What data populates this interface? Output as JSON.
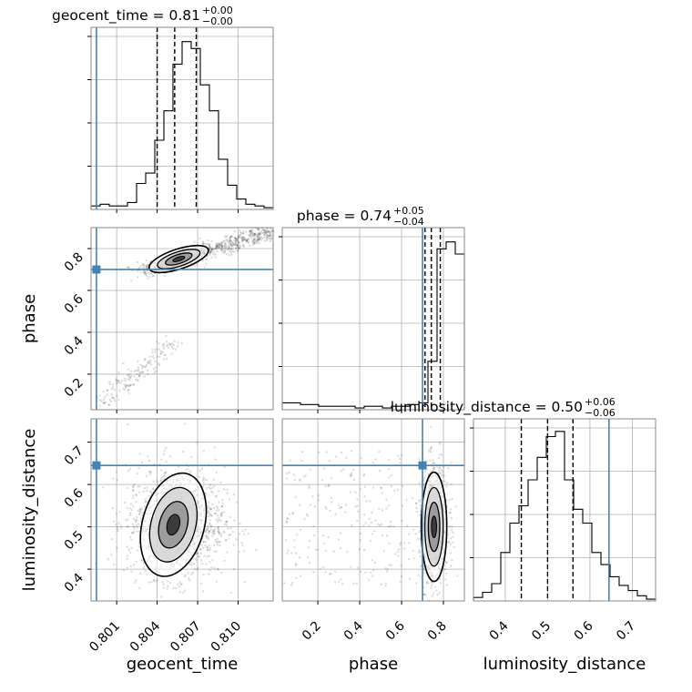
{
  "chart_data": {
    "type": "corner",
    "parameters": [
      "geocent_time",
      "phase",
      "luminosity_distance"
    ],
    "injected": {
      "geocent_time": 0.7995,
      "phase": 0.7,
      "luminosity_distance": 0.645
    },
    "titles": [
      {
        "base": "geocent_time = 0.81",
        "sup": "+0.00",
        "sub": "−0.00"
      },
      {
        "base": "phase = 0.74",
        "sup": "+0.05",
        "sub": "−0.04"
      },
      {
        "base": "luminosity_distance = 0.50",
        "sup": "+0.06",
        "sub": "−0.06"
      }
    ],
    "axis_labels": {
      "x": [
        "geocent_time",
        "phase",
        "luminosity_distance"
      ],
      "y": [
        "phase",
        "luminosity_distance"
      ]
    },
    "ticks": {
      "geocent_time": [
        "0.801",
        "0.804",
        "0.807",
        "0.810"
      ],
      "phase": [
        "0.2",
        "0.4",
        "0.6",
        "0.8"
      ],
      "luminosity_distance": [
        "0.4",
        "0.5",
        "0.6",
        "0.7"
      ]
    },
    "ranges": {
      "geocent_time": [
        0.7991,
        0.8126
      ],
      "phase": [
        0.03,
        0.9
      ],
      "luminosity_distance": [
        0.325,
        0.755
      ]
    },
    "quantiles": {
      "geocent_time": [
        0.804,
        0.8053,
        0.8069
      ],
      "phase": [
        0.712,
        0.742,
        0.785
      ],
      "luminosity_distance": [
        0.438,
        0.5,
        0.56
      ]
    },
    "histograms": {
      "geocent_time": [
        0.02,
        0.03,
        0.02,
        0.02,
        0.04,
        0.15,
        0.21,
        0.4,
        0.57,
        0.84,
        0.97,
        0.93,
        0.72,
        0.57,
        0.29,
        0.14,
        0.06,
        0.03,
        0.02,
        0.01
      ],
      "phase": [
        0.04,
        0.04,
        0.03,
        0.03,
        0.02,
        0.02,
        0.02,
        0.02,
        0.01,
        0.02,
        0.02,
        0.01,
        0.02,
        0.02,
        0.03,
        0.04,
        0.28,
        0.93,
        0.97,
        0.9
      ],
      "luminosity_distance": [
        0.02,
        0.05,
        0.1,
        0.28,
        0.45,
        0.55,
        0.7,
        0.83,
        0.95,
        0.98,
        0.7,
        0.53,
        0.45,
        0.28,
        0.21,
        0.14,
        0.09,
        0.06,
        0.03,
        0.01
      ]
    },
    "injected_color": "#4682b4",
    "grid": true
  }
}
